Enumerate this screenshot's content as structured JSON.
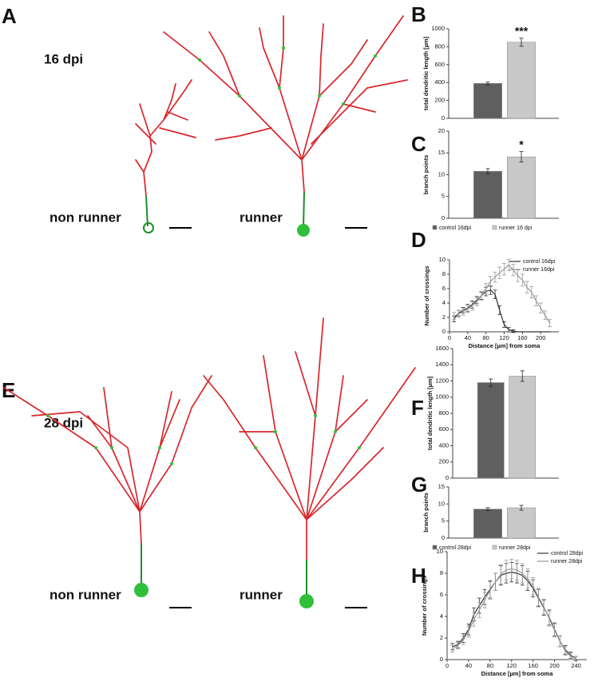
{
  "panel_labels": [
    "A",
    "B",
    "C",
    "D",
    "E",
    "F",
    "G",
    "H"
  ],
  "neurons": [
    {
      "dpi": "16 dpi",
      "left": "non runner",
      "right": "runner"
    },
    {
      "dpi": "28 dpi",
      "left": "non runner",
      "right": "runner"
    }
  ],
  "chart_data": [
    {
      "type": "bar",
      "y_label": "total dendritic length [µm]",
      "values": [
        390,
        850
      ],
      "errors": [
        15,
        45
      ],
      "colors": [
        "#5f5f5f",
        "#c8c8c8"
      ],
      "annotation": "***",
      "ylim": [
        0,
        1000
      ],
      "yticks": [
        0,
        200,
        400,
        600,
        800,
        1000
      ]
    },
    {
      "type": "bar",
      "y_label": "branch points",
      "series": [
        {
          "name": "control 16dpi",
          "color": "#5f5f5f",
          "values": [
            10.8
          ],
          "errors": [
            0.6
          ]
        },
        {
          "name": "runner 16 dpi",
          "color": "#c8c8c8",
          "values": [
            14.1
          ],
          "errors": [
            1.2
          ]
        }
      ],
      "annotation": "*",
      "legend": "bottom",
      "ylim": [
        0,
        20
      ],
      "yticks": [
        0,
        5,
        10,
        15,
        20
      ]
    },
    {
      "type": "line",
      "x_label": "Distance [µm] from soma",
      "y_label": "Number of crossings",
      "x": [
        10,
        20,
        30,
        40,
        50,
        60,
        70,
        80,
        90,
        100,
        110,
        120,
        130,
        140,
        150,
        160,
        170,
        180,
        190,
        200,
        210,
        220
      ],
      "series": [
        {
          "name": "control 16dpi",
          "color": "#333333",
          "values": [
            1.8,
            2.6,
            3.0,
            3.3,
            3.8,
            4.4,
            5.0,
            5.6,
            5.8,
            5.2,
            3.0,
            1.0,
            0.3,
            0.1,
            0,
            0,
            0,
            0,
            0,
            0,
            0,
            0
          ],
          "errors": [
            0.4,
            0.4,
            0.4,
            0.5,
            0.5,
            0.5,
            0.5,
            0.6,
            0.6,
            0.6,
            0.6,
            0.4,
            0.3,
            0.2,
            0,
            0,
            0,
            0,
            0,
            0,
            0,
            0
          ]
        },
        {
          "name": "runner 16dpi",
          "color": "#9a9a9a",
          "values": [
            2.2,
            2.5,
            2.8,
            3.2,
            3.6,
            4.2,
            5.0,
            6.0,
            7.0,
            7.6,
            8.2,
            8.7,
            9.3,
            8.6,
            7.8,
            7.2,
            6.2,
            5.5,
            4.3,
            3.3,
            2.3,
            1.2
          ],
          "errors": [
            0.5,
            0.5,
            0.5,
            0.5,
            0.6,
            0.6,
            0.6,
            0.7,
            0.7,
            0.7,
            0.8,
            0.8,
            0.8,
            0.8,
            0.8,
            0.8,
            0.8,
            0.8,
            0.7,
            0.7,
            0.6,
            0.5
          ]
        }
      ],
      "legend": "upper right",
      "xlim": [
        0,
        240
      ],
      "xticks": [
        0,
        40,
        80,
        120,
        160,
        200
      ],
      "ylim": [
        0,
        10
      ],
      "yticks": [
        0,
        2,
        4,
        6,
        8,
        10
      ]
    },
    {
      "type": "bar",
      "y_label": "total dendritic length [µm]",
      "values": [
        1180,
        1260
      ],
      "errors": [
        45,
        65
      ],
      "colors": [
        "#5f5f5f",
        "#c8c8c8"
      ],
      "ylim": [
        0,
        1600
      ],
      "yticks": [
        0,
        200,
        400,
        600,
        800,
        1000,
        1200,
        1400,
        1600
      ]
    },
    {
      "type": "bar",
      "y_label": "branch points",
      "series": [
        {
          "name": "control 28dpi",
          "color": "#5f5f5f",
          "values": [
            8.5
          ],
          "errors": [
            0.4
          ]
        },
        {
          "name": "runner 28dpi",
          "color": "#c8c8c8",
          "values": [
            8.9
          ],
          "errors": [
            0.7
          ]
        }
      ],
      "legend": "bottom",
      "ylim": [
        0,
        15
      ],
      "yticks": [
        0,
        5,
        10,
        15
      ]
    },
    {
      "type": "line",
      "x_label": "Distance [µm] from soma",
      "y_label": "Number of crossings",
      "x": [
        10,
        20,
        30,
        40,
        50,
        60,
        70,
        80,
        90,
        100,
        110,
        120,
        130,
        140,
        150,
        160,
        170,
        180,
        190,
        200,
        210,
        220,
        230,
        240
      ],
      "series": [
        {
          "name": "control 28dpi",
          "color": "#333333",
          "values": [
            1.2,
            1.4,
            2.0,
            2.8,
            4.2,
            5.0,
            5.8,
            6.5,
            7.2,
            7.8,
            8.0,
            8.1,
            8.0,
            7.8,
            7.3,
            6.6,
            5.7,
            4.8,
            3.9,
            2.8,
            1.7,
            0.9,
            0.4,
            0.1
          ],
          "errors": [
            0.3,
            0.3,
            0.4,
            0.5,
            0.6,
            0.7,
            0.7,
            0.8,
            0.8,
            0.9,
            0.9,
            0.9,
            0.9,
            0.9,
            0.9,
            0.8,
            0.8,
            0.7,
            0.7,
            0.6,
            0.5,
            0.4,
            0.3,
            0.2
          ]
        },
        {
          "name": "runner 28dpi",
          "color": "#9a9a9a",
          "values": [
            1.0,
            1.3,
            1.8,
            2.6,
            3.7,
            4.6,
            5.5,
            6.4,
            7.2,
            7.9,
            8.3,
            8.4,
            8.3,
            8.0,
            7.5,
            6.8,
            5.8,
            4.9,
            3.8,
            2.7,
            1.7,
            0.8,
            0.3,
            0.1
          ],
          "errors": [
            0.3,
            0.3,
            0.4,
            0.5,
            0.6,
            0.7,
            0.7,
            0.8,
            0.8,
            0.9,
            0.9,
            0.9,
            0.9,
            0.9,
            0.9,
            0.8,
            0.8,
            0.7,
            0.7,
            0.6,
            0.5,
            0.4,
            0.3,
            0.2
          ]
        }
      ],
      "legend": "upper right",
      "xlim": [
        0,
        260
      ],
      "xticks": [
        0,
        40,
        80,
        120,
        160,
        200,
        240
      ],
      "ylim": [
        0,
        10
      ],
      "yticks": [
        0,
        2,
        4,
        6,
        8,
        10
      ]
    }
  ]
}
